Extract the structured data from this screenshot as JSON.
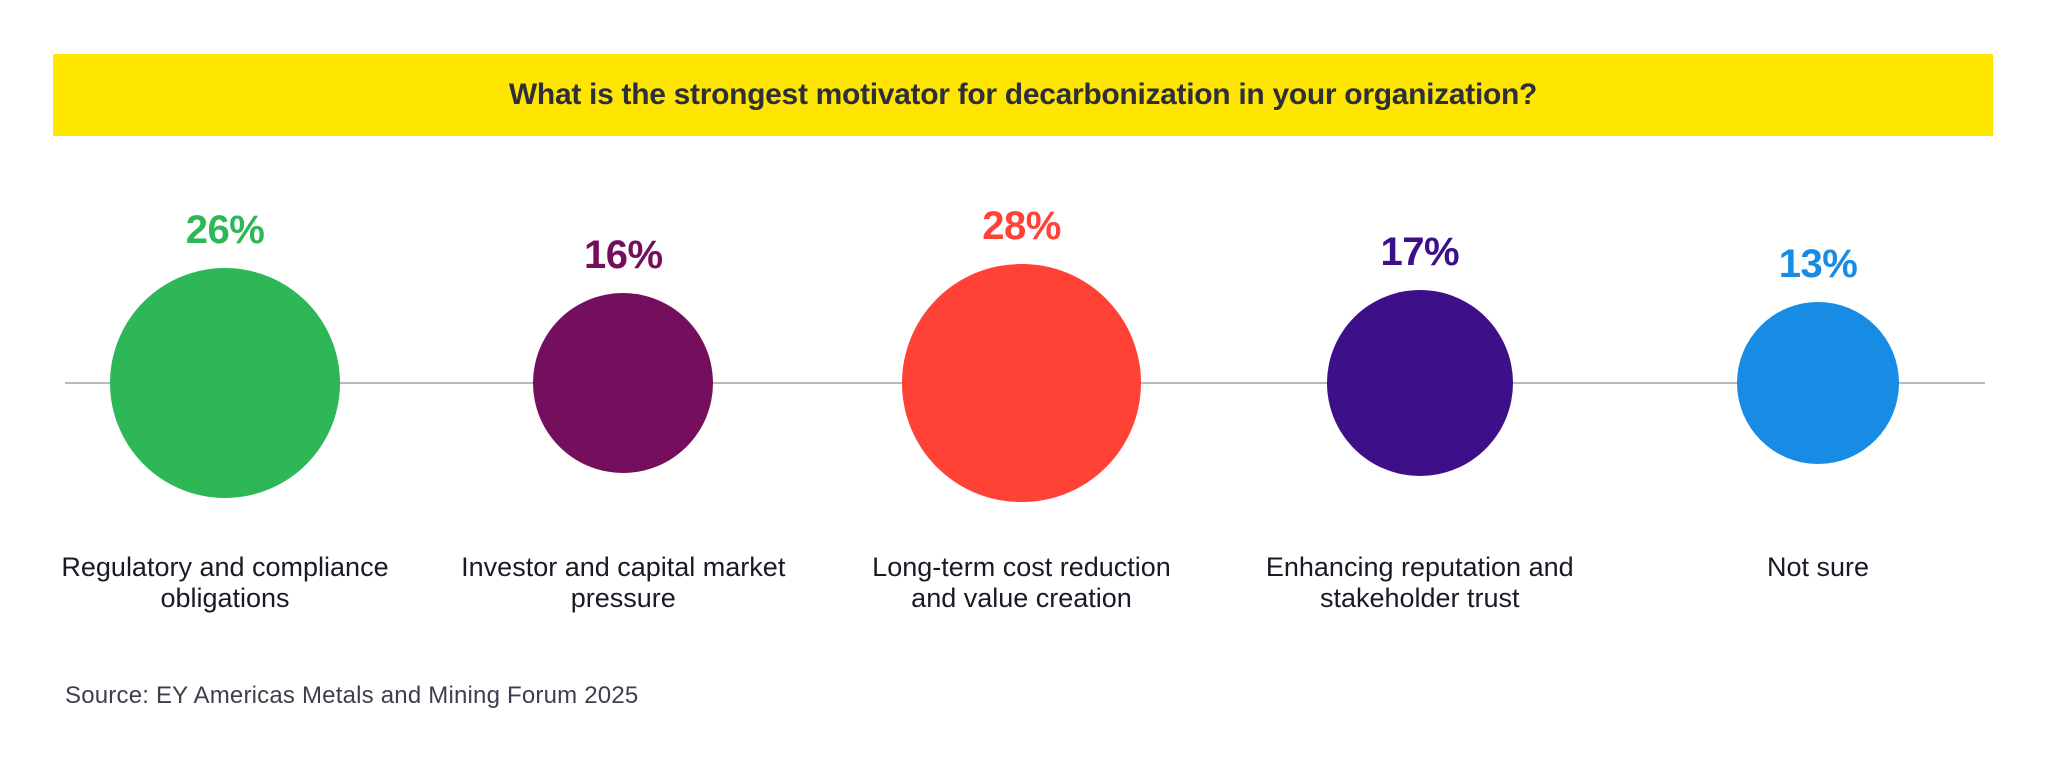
{
  "header": {
    "title": "What is the strongest motivator for decarbonization in your organization?",
    "background_color": "#FFE600",
    "text_color": "#2E2E38"
  },
  "footer": {
    "source": "Source: EY Americas Metals and Mining Forum 2025"
  },
  "chart_data": {
    "type": "scatter",
    "variant": "bubble",
    "title": "What is the strongest motivator for decarbonization in your organization?",
    "categories": [
      "Regulatory and compliance\nobligations",
      "Investor and capital market\npressure",
      "Long-term cost reduction\nand value creation",
      "Enhancing reputation and\nstakeholder trust",
      "Not sure"
    ],
    "values": [
      26,
      16,
      28,
      17,
      13
    ],
    "unit": "%",
    "colors": [
      "#2DB757",
      "#750E5C",
      "#FF4136",
      "#3D108A",
      "#188CE5"
    ],
    "axis_line": true,
    "legend": "none",
    "bubble_sizing": "area proportional to value",
    "axis_line_color": "#B9B9C0",
    "category_label_color": "#1A1A24"
  }
}
